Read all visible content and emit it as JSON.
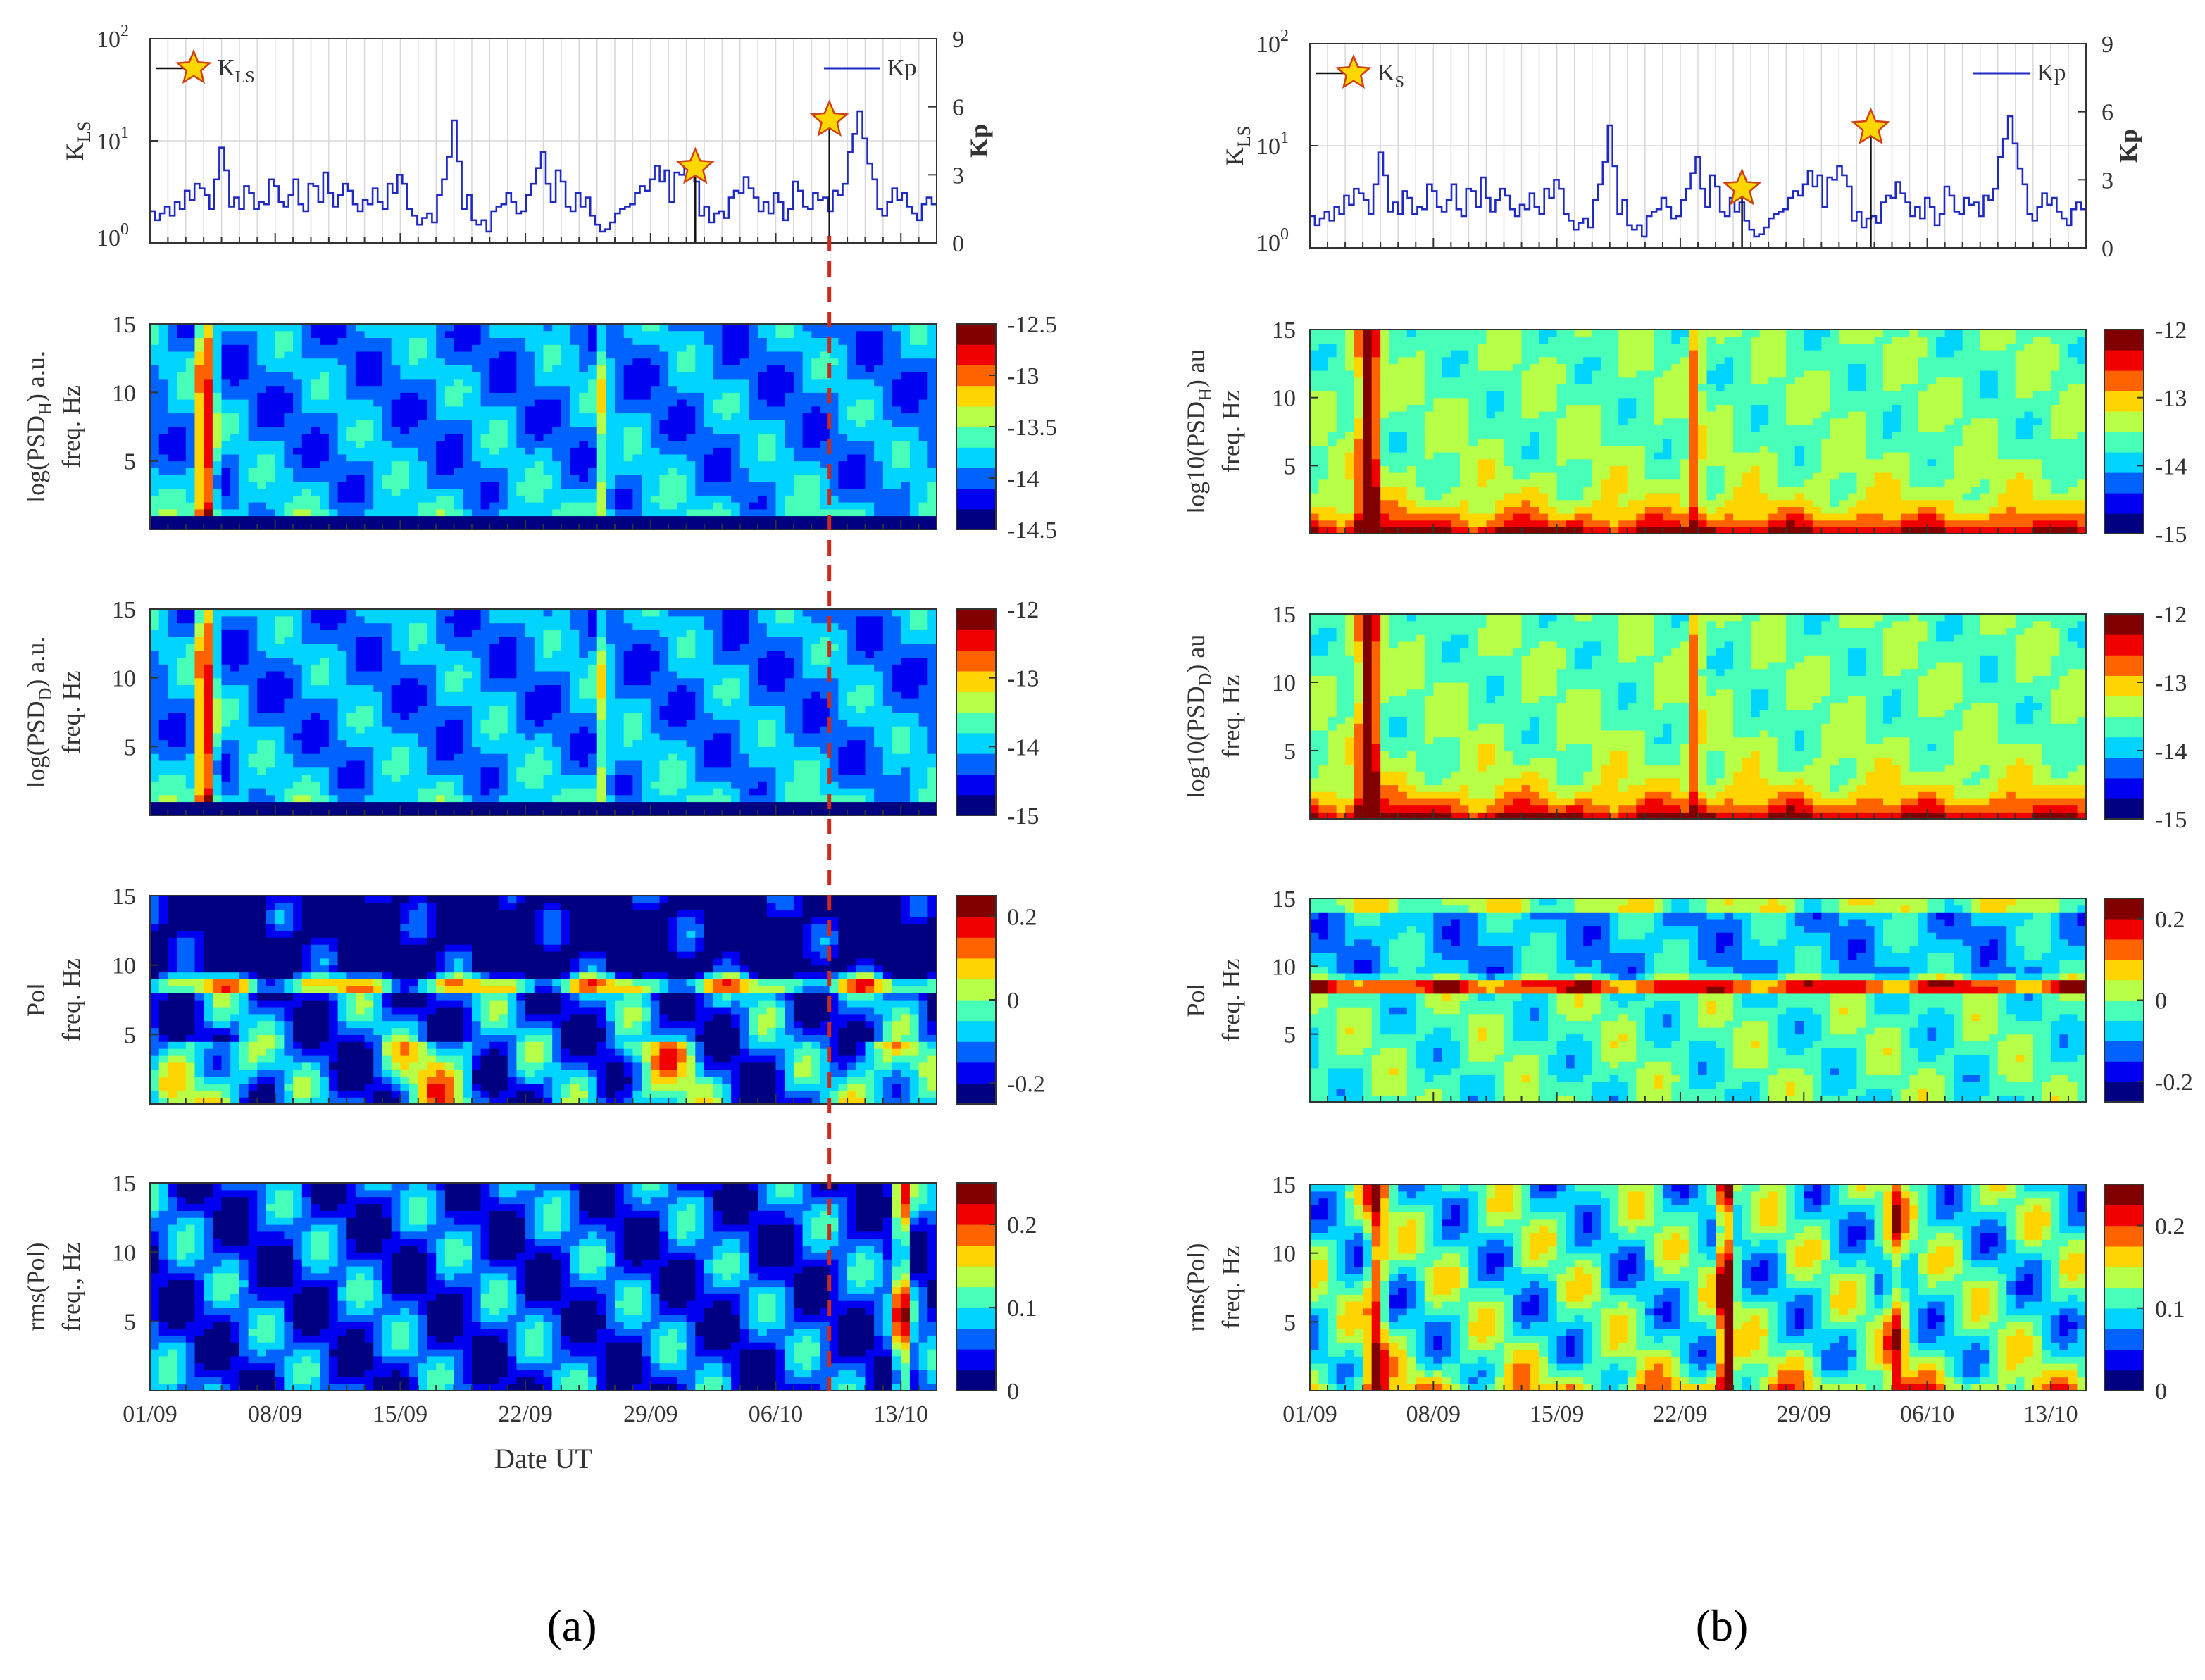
{
  "figure": {
    "date_axis": [
      "01/09",
      "08/09",
      "15/09",
      "22/09",
      "29/09",
      "06/10",
      "13/10"
    ],
    "xlabel": "Date UT",
    "subfigure_labels": [
      "(a)",
      "(b)"
    ]
  },
  "chart_data": [
    {
      "type": "line",
      "panel": "a1",
      "ylabel_left": "K_LS",
      "ylabel_right": "Kp",
      "left_scale": "log",
      "left_ticks": [
        "10^0",
        "10^1",
        "10^2"
      ],
      "right_ticks": [
        "0",
        "3",
        "6",
        "9"
      ],
      "ylim_right": [
        0,
        9
      ],
      "legend": [
        {
          "label": "K_LS",
          "marker": "star"
        },
        {
          "label": "Kp",
          "style": "line"
        }
      ],
      "x_range_days": [
        0,
        44
      ],
      "events": [
        {
          "day": 30.5,
          "K_LS": 5.5
        },
        {
          "day": 38.0,
          "K_LS": 16.0
        }
      ],
      "series": [
        {
          "name": "Kp",
          "color": "#1f2ac4",
          "values": [
            1.4,
            1,
            1.3,
            1.6,
            1.2,
            1.8,
            1.5,
            2.3,
            1.9,
            2.6,
            2.4,
            2.1,
            1.5,
            2.8,
            4.2,
            3.2,
            1.6,
            2.0,
            1.5,
            2.5,
            2.2,
            1.5,
            1.8,
            1.7,
            2.8,
            2.5,
            1.8,
            1.6,
            2.1,
            2.8,
            1.7,
            1.4,
            2.6,
            2.5,
            1.8,
            3.1,
            2.2,
            1.6,
            2.1,
            2.6,
            2.3,
            1.7,
            1.4,
            1.9,
            1.7,
            2.4,
            1.8,
            1.5,
            2.6,
            2.2,
            3.0,
            2.6,
            1.5,
            1.2,
            0.8,
            1.1,
            1.3,
            0.9,
            2.1,
            2.8,
            3.8,
            5.4,
            3.6,
            1.5,
            2.1,
            1.0,
            0.8,
            1.0,
            0.5,
            1.4,
            1.6,
            1.7,
            2.2,
            1.8,
            1.3,
            1.4,
            2.1,
            2.6,
            3.3,
            4.0,
            2.6,
            1.8,
            3.2,
            2.7,
            1.6,
            1.4,
            2.2,
            1.6,
            2.0,
            1.2,
            0.8,
            0.5,
            0.6,
            0.9,
            1.3,
            1.5,
            1.6,
            1.7,
            2.2,
            2.5,
            2.3,
            2.8,
            3.4,
            2.7,
            3.2,
            1.8,
            3.1,
            3.0,
            3.6,
            3.2,
            2.7,
            1.2,
            1.6,
            0.9,
            1.3,
            1.4,
            1.1,
            2.0,
            2.3,
            2.2,
            2.9,
            2.4,
            2.0,
            1.4,
            1.8,
            1.3,
            2.2,
            1.8,
            1.0,
            1.5,
            2.7,
            2.3,
            1.6,
            1.5,
            2.2,
            1.9,
            2.0,
            1.4,
            2.3,
            2.1,
            2.6,
            4.0,
            4.8,
            5.8,
            4.6,
            3.5,
            2.8,
            1.5,
            1.2,
            1.8,
            2.4,
            1.9,
            2.2,
            1.6,
            1.3,
            1.0,
            1.7,
            2.0,
            1.7
          ]
        },
        {
          "name": "K_LS",
          "color": "#000000",
          "values": []
        }
      ]
    },
    {
      "type": "heatmap",
      "panel": "a2",
      "ylabel": "log(PSD_H) a.u. freq. Hz",
      "y_ticks": [
        "5",
        "10",
        "15"
      ],
      "ylim": [
        0,
        15
      ],
      "colorbar": {
        "ticks": [
          "-12.5",
          "-13",
          "-13.5",
          "-14",
          "-14.5"
        ],
        "range": [
          -14.5,
          -12.5
        ]
      }
    },
    {
      "type": "heatmap",
      "panel": "a3",
      "ylabel": "log(PSD_D) a.u. freq. Hz",
      "y_ticks": [
        "5",
        "10",
        "15"
      ],
      "ylim": [
        0,
        15
      ],
      "colorbar": {
        "ticks": [
          "-12",
          "-13",
          "-14",
          "-15"
        ],
        "range": [
          -15,
          -12
        ]
      }
    },
    {
      "type": "heatmap",
      "panel": "a4",
      "ylabel": "Pol freq. Hz",
      "y_ticks": [
        "5",
        "10",
        "15"
      ],
      "ylim": [
        0,
        15
      ],
      "colorbar": {
        "ticks": [
          "0.2",
          "0",
          "-0.2"
        ],
        "range": [
          -0.25,
          0.25
        ]
      }
    },
    {
      "type": "heatmap",
      "panel": "a5",
      "ylabel": "rms(Pol) freq., Hz",
      "y_ticks": [
        "5",
        "10",
        "15"
      ],
      "ylim": [
        0,
        15
      ],
      "colorbar": {
        "ticks": [
          "0.2",
          "0.1",
          "0"
        ],
        "range": [
          0,
          0.25
        ]
      }
    },
    {
      "type": "line",
      "panel": "b1",
      "ylabel_left": "K_LS",
      "ylabel_right": "Kp",
      "left_scale": "log",
      "left_ticks": [
        "10^0",
        "10^1",
        "10^2"
      ],
      "right_ticks": [
        "0",
        "3",
        "6",
        "9"
      ],
      "ylim_right": [
        0,
        9
      ],
      "legend": [
        {
          "label": "K_S",
          "marker": "star"
        },
        {
          "label": "Kp",
          "style": "line"
        }
      ],
      "x_range_days": [
        0,
        44
      ],
      "events": [
        {
          "day": 24.5,
          "K_LS": 3.8
        },
        {
          "day": 31.8,
          "K_LS": 15.0
        }
      ],
      "series": [
        {
          "name": "Kp",
          "color": "#1f2ac4",
          "values": [
            1.4,
            1,
            1.3,
            1.6,
            1.2,
            1.8,
            1.5,
            2.3,
            1.9,
            2.6,
            2.4,
            2.1,
            1.5,
            2.8,
            4.2,
            3.2,
            1.6,
            2.0,
            1.5,
            2.5,
            2.2,
            1.5,
            1.8,
            1.7,
            2.8,
            2.5,
            1.8,
            1.6,
            2.1,
            2.8,
            1.7,
            1.4,
            2.6,
            2.5,
            1.8,
            3.1,
            2.2,
            1.6,
            2.1,
            2.6,
            2.3,
            1.7,
            1.4,
            1.9,
            1.7,
            2.4,
            1.8,
            1.5,
            2.6,
            2.2,
            3.0,
            2.6,
            1.5,
            1.2,
            0.8,
            1.1,
            1.3,
            0.9,
            2.1,
            2.8,
            3.8,
            5.4,
            3.6,
            1.5,
            2.1,
            1.0,
            0.8,
            1.0,
            0.5,
            1.4,
            1.6,
            1.7,
            2.2,
            1.8,
            1.3,
            1.4,
            2.1,
            2.6,
            3.3,
            4.0,
            2.6,
            1.8,
            3.2,
            2.7,
            1.6,
            1.4,
            2.2,
            1.6,
            2.0,
            1.2,
            0.8,
            0.5,
            0.6,
            0.9,
            1.3,
            1.5,
            1.6,
            1.7,
            2.2,
            2.5,
            2.3,
            2.8,
            3.4,
            2.7,
            3.2,
            1.8,
            3.1,
            3.0,
            3.6,
            3.2,
            2.7,
            1.2,
            1.6,
            0.9,
            1.3,
            1.4,
            1.1,
            2.0,
            2.3,
            2.2,
            2.9,
            2.4,
            2.0,
            1.4,
            1.8,
            1.3,
            2.2,
            1.8,
            1.0,
            1.5,
            2.7,
            2.3,
            1.6,
            1.5,
            2.2,
            1.9,
            2.0,
            1.4,
            2.3,
            2.1,
            2.6,
            4.0,
            4.8,
            5.8,
            4.6,
            3.5,
            2.8,
            1.5,
            1.2,
            1.8,
            2.4,
            1.9,
            2.2,
            1.6,
            1.3,
            1.0,
            1.7,
            2.0,
            1.7
          ]
        },
        {
          "name": "K_LS",
          "color": "#000000",
          "values": []
        }
      ]
    },
    {
      "type": "heatmap",
      "panel": "b2",
      "ylabel": "log10(PSD_H) au freq. Hz",
      "y_ticks": [
        "5",
        "10",
        "15"
      ],
      "ylim": [
        0,
        15
      ],
      "colorbar": {
        "ticks": [
          "-12",
          "-13",
          "-14",
          "-15"
        ],
        "range": [
          -15,
          -12
        ]
      }
    },
    {
      "type": "heatmap",
      "panel": "b3",
      "ylabel": "log10(PSD_D) au freq. Hz",
      "y_ticks": [
        "5",
        "10",
        "15"
      ],
      "ylim": [
        0,
        15
      ],
      "colorbar": {
        "ticks": [
          "-12",
          "-13",
          "-14",
          "-15"
        ],
        "range": [
          -15,
          -12
        ]
      }
    },
    {
      "type": "heatmap",
      "panel": "b4",
      "ylabel": "Pol freq. Hz",
      "y_ticks": [
        "5",
        "10",
        "15"
      ],
      "ylim": [
        0,
        15
      ],
      "colorbar": {
        "ticks": [
          "0.2",
          "0",
          "-0.2"
        ],
        "range": [
          -0.25,
          0.25
        ]
      }
    },
    {
      "type": "heatmap",
      "panel": "b5",
      "ylabel": "rms(Pol) freq. Hz",
      "y_ticks": [
        "5",
        "10",
        "15"
      ],
      "ylim": [
        0,
        15
      ],
      "colorbar": {
        "ticks": [
          "0.2",
          "0.1",
          "0"
        ],
        "range": [
          0,
          0.25
        ]
      }
    }
  ]
}
